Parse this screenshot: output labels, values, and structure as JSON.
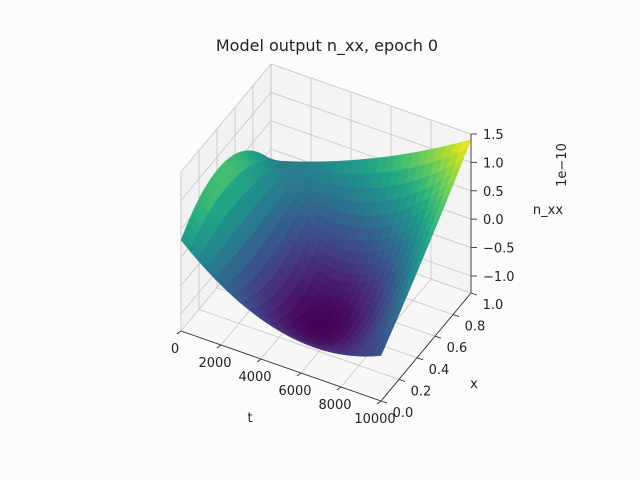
{
  "chart_data": {
    "type": "surface3d",
    "title": "Model output n_xx, epoch 0",
    "xlabel": "t",
    "ylabel": "x",
    "zlabel": "n_xx",
    "z_offset_label": "1e−10",
    "x_ticks": [
      "0",
      "2000",
      "4000",
      "6000",
      "8000",
      "10000"
    ],
    "y_ticks": [
      "0.0",
      "0.2",
      "0.4",
      "0.6",
      "0.8",
      "1.0"
    ],
    "z_ticks": [
      "−1.0",
      "−0.5",
      "0.0",
      "0.5",
      "1.0",
      "1.5"
    ],
    "xlim": [
      0,
      10000
    ],
    "ylim": [
      0,
      1
    ],
    "zlim": [
      -1.3,
      1.5
    ],
    "z_scale": 1e-10,
    "colormap": "viridis",
    "grid": true,
    "corner_values": {
      "t0_x0": 0.3,
      "t10000_x0": -0.5,
      "t0_x1": -0.2,
      "t10000_x1": 1.4,
      "center": -1.0,
      "t0_xmid": 0.75,
      "t10000_xmid": 0.4,
      "tmid_x0": -0.7,
      "tmid_x1": 0.45
    }
  }
}
